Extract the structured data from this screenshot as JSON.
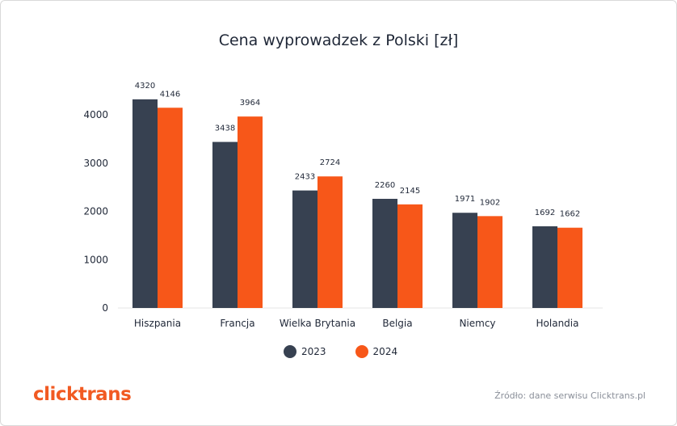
{
  "chart_data": {
    "type": "bar",
    "title": "Cena wyprowadzek z Polski [zł]",
    "categories": [
      "Hiszpania",
      "Francja",
      "Wielka Brytania",
      "Belgia",
      "Niemcy",
      "Holandia"
    ],
    "series": [
      {
        "name": "2023",
        "color": "#374151",
        "values": [
          4320,
          3438,
          2433,
          2260,
          1971,
          1692
        ]
      },
      {
        "name": "2024",
        "color": "#f75719",
        "values": [
          4146,
          3964,
          2724,
          2145,
          1902,
          1662
        ]
      }
    ],
    "ylim": [
      0,
      4000
    ],
    "yticks": [
      0,
      1000,
      2000,
      3000,
      4000
    ],
    "grid": false,
    "legend": "bottom-center"
  },
  "logo_text": "clicktrans",
  "source_text": "Źródło: dane serwisu Clicktrans.pl"
}
